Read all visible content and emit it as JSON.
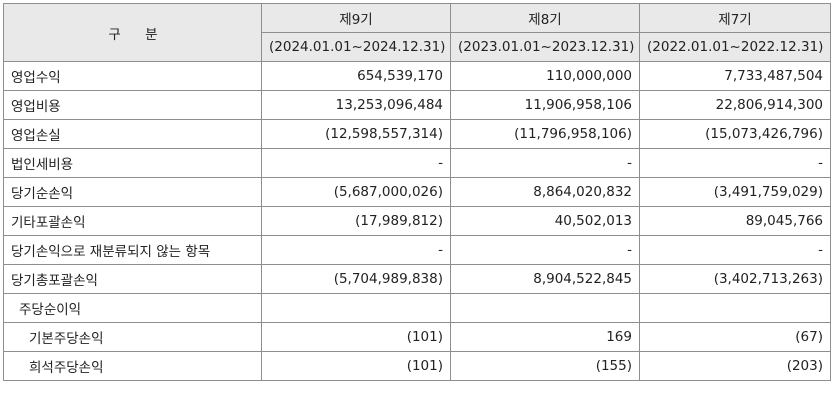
{
  "table": {
    "header_label": "구 분",
    "periods": [
      {
        "name": "제9기",
        "range": "(2024.01.01~2024.12.31)"
      },
      {
        "name": "제8기",
        "range": "(2023.01.01~2023.12.31)"
      },
      {
        "name": "제7기",
        "range": "(2022.01.01~2022.12.31)"
      }
    ],
    "rows": [
      {
        "label": "영업수익",
        "values": [
          "654,539,170",
          "110,000,000",
          "7,733,487,504"
        ]
      },
      {
        "label": "영업비용",
        "values": [
          "13,253,096,484",
          "11,906,958,106",
          "22,806,914,300"
        ]
      },
      {
        "label": "영업손실",
        "values": [
          "(12,598,557,314)",
          "(11,796,958,106)",
          "(15,073,426,796)"
        ]
      },
      {
        "label": "법인세비용",
        "values": [
          "-",
          "-",
          "-"
        ]
      },
      {
        "label": "당기순손익",
        "values": [
          "(5,687,000,026)",
          "8,864,020,832",
          "(3,491,759,029)"
        ]
      },
      {
        "label": "기타포괄손익",
        "values": [
          "(17,989,812)",
          "40,502,013",
          "89,045,766"
        ]
      },
      {
        "label": "당기손익으로 재분류되지 않는 항목",
        "values": [
          "-",
          "-",
          "-"
        ]
      },
      {
        "label": "당기총포괄손익",
        "values": [
          "(5,704,989,838)",
          "8,904,522,845",
          "(3,402,713,263)"
        ]
      },
      {
        "label": "주당순이익",
        "values": [
          "",
          "",
          ""
        ]
      },
      {
        "label": "기본주당손익",
        "values": [
          "(101)",
          "169",
          "(67)"
        ]
      },
      {
        "label": "희석주당손익",
        "values": [
          "(101)",
          "(155)",
          "(203)"
        ]
      }
    ]
  }
}
